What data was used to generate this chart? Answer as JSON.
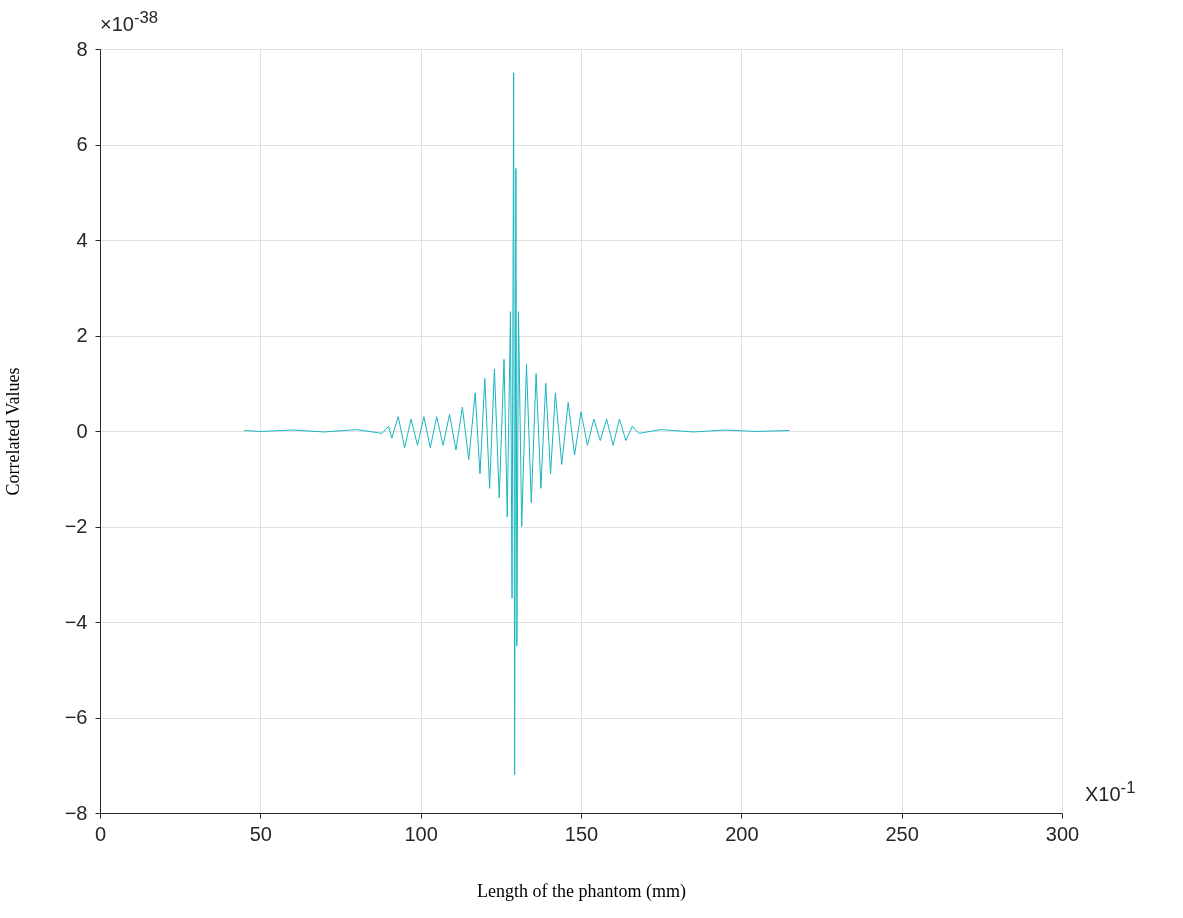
{
  "chart_data": {
    "type": "line",
    "xlabel": "Length of the phantom (mm)",
    "ylabel": "Correlated Values",
    "annotations": [
      "×10$^{-38}$",
      "X10$^{-1}$"
    ],
    "xlim": [
      0,
      300
    ],
    "xticks": [
      0,
      50,
      100,
      150,
      200,
      250,
      300
    ],
    "ylim": [
      -8,
      8
    ],
    "yticks": [
      -8,
      -6,
      -4,
      -2,
      0,
      2,
      4,
      6,
      8
    ],
    "grid": true,
    "series": [
      {
        "color": "#1ab5c0",
        "x": [
          45,
          50,
          60,
          70,
          80,
          88,
          90,
          91,
          93,
          95,
          97,
          99,
          101,
          103,
          105,
          107,
          109,
          111,
          113,
          115,
          117,
          118.5,
          120,
          121.5,
          123,
          124.5,
          126,
          127,
          128,
          128.5,
          129,
          129.3,
          129.7,
          130,
          130.5,
          131.5,
          133,
          134.5,
          136,
          137.5,
          139,
          140.5,
          142,
          144,
          146,
          148,
          150,
          152,
          154,
          156,
          158,
          160,
          162,
          164,
          166,
          168,
          175,
          185,
          195,
          205,
          215
        ],
        "values": [
          0.01,
          -0.01,
          0.02,
          -0.02,
          0.03,
          -0.05,
          0.1,
          -0.15,
          0.3,
          -0.35,
          0.25,
          -0.3,
          0.3,
          -0.35,
          0.3,
          -0.3,
          0.35,
          -0.4,
          0.5,
          -0.6,
          0.8,
          -0.9,
          1.1,
          -1.2,
          1.3,
          -1.4,
          1.5,
          -1.8,
          2.5,
          -3.5,
          7.5,
          -7.2,
          5.5,
          -4.5,
          2.5,
          -2.0,
          1.4,
          -1.5,
          1.2,
          -1.2,
          1.0,
          -0.9,
          0.8,
          -0.7,
          0.6,
          -0.5,
          0.4,
          -0.3,
          0.25,
          -0.2,
          0.25,
          -0.3,
          0.25,
          -0.2,
          0.1,
          -0.05,
          0.03,
          -0.02,
          0.02,
          -0.01,
          0.01
        ]
      }
    ]
  }
}
